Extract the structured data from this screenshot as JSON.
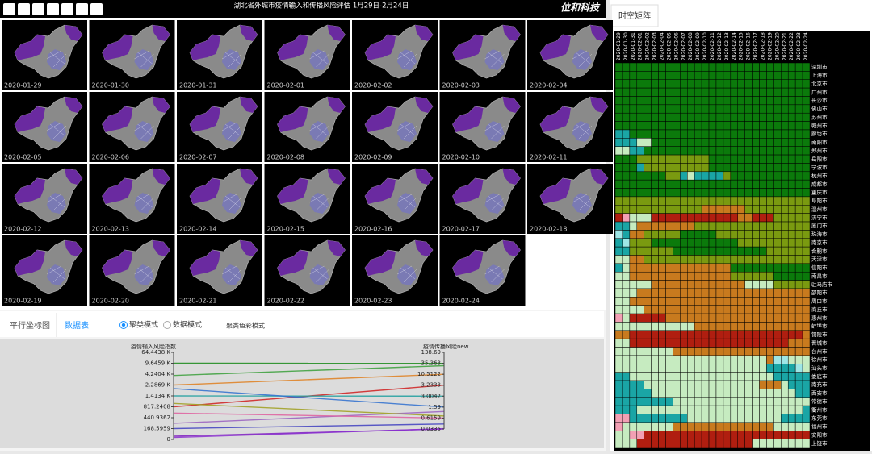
{
  "header": {
    "title": "湖北省外城市疫情输入和传播风险评估 1月29日-2月24日",
    "logo": "位和科技"
  },
  "dates": [
    "2020-01-29",
    "2020-01-30",
    "2020-01-31",
    "2020-02-01",
    "2020-02-02",
    "2020-02-03",
    "2020-02-04",
    "2020-02-05",
    "2020-02-06",
    "2020-02-07",
    "2020-02-08",
    "2020-02-09",
    "2020-02-10",
    "2020-02-11",
    "2020-02-12",
    "2020-02-13",
    "2020-02-14",
    "2020-02-15",
    "2020-02-16",
    "2020-02-17",
    "2020-02-18",
    "2020-02-19",
    "2020-02-20",
    "2020-02-21",
    "2020-02-22",
    "2020-02-23",
    "2020-02-24"
  ],
  "tabs": {
    "items": [
      "平行坐标图",
      "数据表"
    ],
    "radios": [
      "聚类模式",
      "数据模式"
    ],
    "option": "聚类色彩模式"
  },
  "parallel": {
    "left_axis": {
      "title": "疫情输入风险指数",
      "ticks": [
        0,
        168.5959,
        440.9362,
        817.2408,
        {
          "value": 1413.4,
          "label": "1.4134 K"
        },
        {
          "value": 2286.9,
          "label": "2.2869 K"
        },
        {
          "value": 4240.4,
          "label": "4.2404 K"
        },
        {
          "value": 9645.9,
          "label": "9.6459 K"
        },
        {
          "value": 64443.8,
          "label": "64.4438 K"
        }
      ]
    },
    "right_axis": {
      "title": "疫情传播风险new",
      "ticks": [
        0.0335,
        0.6159,
        1.59,
        3.0042,
        3.2333,
        10.5122,
        35.363,
        138.69
      ]
    },
    "lines": [
      {
        "color": "#1a8a1a",
        "values": [
          9645.9,
          35.363
        ]
      },
      {
        "color": "#3aa03a",
        "values": [
          4000,
          30
        ]
      },
      {
        "color": "#e08020",
        "values": [
          2286.9,
          10.5122
        ]
      },
      {
        "color": "#d02020",
        "values": [
          817.2408,
          3.2333
        ]
      },
      {
        "color": "#20a0a0",
        "values": [
          1413.4,
          3.0042
        ]
      },
      {
        "color": "#3070d0",
        "values": [
          2000,
          1.59
        ]
      },
      {
        "color": "#9a60c0",
        "values": [
          300,
          1.2
        ]
      },
      {
        "color": "#a0a020",
        "values": [
          1000,
          0.8
        ]
      },
      {
        "color": "#e060a0",
        "values": [
          600,
          0.6159
        ]
      },
      {
        "color": "#4040c0",
        "values": [
          168.5959,
          0.3
        ]
      },
      {
        "color": "#8020c0",
        "values": [
          50,
          0.0335
        ]
      },
      {
        "color": "#8a30d0",
        "values": [
          30,
          0.05
        ]
      }
    ]
  },
  "matrix": {
    "title": "时空矩阵",
    "palette": [
      "#0b7a0b",
      "#7a9a10",
      "#c87a1e",
      "#b01e10",
      "#c6ebc0",
      "#1aa5a5",
      "#f2a0b4",
      "#9ee6e6"
    ],
    "cities": [
      "深圳市",
      "上海市",
      "北京市",
      "广州市",
      "长沙市",
      "佛山市",
      "苏州市",
      "赣州市",
      "廊坊市",
      "南阳市",
      "郑州市",
      "岳阳市",
      "宁波市",
      "杭州市",
      "成都市",
      "重庆市",
      "阜阳市",
      "温州市",
      "济宁市",
      "厦门市",
      "珠海市",
      "南京市",
      "合肥市",
      "天津市",
      "信阳市",
      "南昌市",
      "驻马店市",
      "邵阳市",
      "周口市",
      "商丘市",
      "惠州市",
      "蚌埠市",
      "铜陵市",
      "晋城市",
      "台州市",
      "徐州市",
      "汕头市",
      "娄底市",
      "南充市",
      "西安市",
      "常德市",
      "衢州市",
      "东莞市",
      "福州市",
      "安阳市",
      "上饶市"
    ],
    "clusters": [
      [
        0,
        0,
        0,
        0,
        0,
        0,
        0,
        0,
        0,
        0,
        0,
        0,
        0,
        0,
        0,
        0,
        0,
        0,
        0,
        0,
        0,
        0,
        0,
        0,
        0,
        0,
        0
      ],
      [
        0,
        0,
        0,
        0,
        0,
        0,
        0,
        0,
        0,
        0,
        0,
        0,
        0,
        0,
        0,
        0,
        0,
        0,
        0,
        0,
        0,
        0,
        0,
        0,
        0,
        0,
        0
      ],
      [
        0,
        0,
        0,
        0,
        0,
        0,
        0,
        0,
        0,
        0,
        0,
        0,
        0,
        0,
        0,
        0,
        0,
        0,
        0,
        0,
        0,
        0,
        0,
        0,
        0,
        0,
        0
      ],
      [
        0,
        0,
        0,
        0,
        0,
        0,
        0,
        0,
        0,
        0,
        0,
        0,
        0,
        0,
        0,
        0,
        0,
        0,
        0,
        0,
        0,
        0,
        0,
        0,
        0,
        0,
        0
      ],
      [
        0,
        0,
        0,
        0,
        0,
        0,
        0,
        0,
        0,
        0,
        0,
        0,
        0,
        0,
        0,
        0,
        0,
        0,
        0,
        0,
        0,
        0,
        0,
        0,
        0,
        0,
        0
      ],
      [
        0,
        0,
        0,
        0,
        0,
        0,
        0,
        0,
        0,
        0,
        0,
        0,
        0,
        0,
        0,
        0,
        0,
        0,
        0,
        0,
        0,
        0,
        0,
        0,
        0,
        0,
        0
      ],
      [
        0,
        0,
        0,
        0,
        0,
        0,
        0,
        0,
        0,
        0,
        0,
        0,
        0,
        0,
        0,
        0,
        0,
        0,
        0,
        0,
        0,
        0,
        0,
        0,
        0,
        0,
        0
      ],
      [
        0,
        0,
        0,
        0,
        0,
        0,
        0,
        0,
        0,
        0,
        0,
        0,
        0,
        0,
        0,
        0,
        0,
        0,
        0,
        0,
        0,
        0,
        0,
        0,
        0,
        0,
        0
      ],
      [
        5,
        5,
        0,
        0,
        0,
        0,
        0,
        0,
        0,
        0,
        0,
        0,
        0,
        0,
        0,
        0,
        0,
        0,
        0,
        0,
        0,
        0,
        0,
        0,
        0,
        0,
        0
      ],
      [
        5,
        5,
        5,
        4,
        4,
        0,
        0,
        0,
        0,
        0,
        0,
        0,
        0,
        0,
        0,
        0,
        0,
        0,
        0,
        0,
        0,
        0,
        0,
        0,
        0,
        0,
        0
      ],
      [
        4,
        4,
        5,
        5,
        0,
        0,
        0,
        0,
        0,
        0,
        0,
        0,
        0,
        0,
        0,
        0,
        0,
        0,
        0,
        0,
        0,
        0,
        0,
        0,
        0,
        0,
        0
      ],
      [
        0,
        0,
        0,
        1,
        1,
        1,
        1,
        1,
        1,
        1,
        1,
        1,
        1,
        0,
        0,
        0,
        0,
        0,
        0,
        0,
        0,
        0,
        0,
        0,
        0,
        0,
        0
      ],
      [
        0,
        0,
        0,
        5,
        1,
        1,
        1,
        1,
        1,
        1,
        1,
        1,
        1,
        0,
        0,
        0,
        0,
        0,
        0,
        0,
        0,
        0,
        0,
        0,
        0,
        0,
        0
      ],
      [
        0,
        0,
        0,
        0,
        0,
        0,
        0,
        1,
        1,
        5,
        4,
        5,
        5,
        5,
        5,
        1,
        0,
        0,
        0,
        0,
        0,
        0,
        0,
        0,
        0,
        0,
        0
      ],
      [
        0,
        0,
        0,
        0,
        0,
        0,
        0,
        0,
        0,
        0,
        0,
        0,
        0,
        0,
        0,
        0,
        0,
        0,
        0,
        0,
        0,
        0,
        0,
        0,
        0,
        0,
        0
      ],
      [
        0,
        0,
        0,
        0,
        0,
        0,
        0,
        0,
        0,
        0,
        0,
        0,
        0,
        0,
        0,
        0,
        0,
        0,
        0,
        0,
        0,
        0,
        0,
        0,
        0,
        0,
        0
      ],
      [
        1,
        1,
        1,
        1,
        1,
        1,
        1,
        1,
        1,
        1,
        1,
        1,
        1,
        1,
        1,
        1,
        1,
        1,
        1,
        1,
        1,
        1,
        1,
        1,
        1,
        1,
        1
      ],
      [
        1,
        1,
        1,
        1,
        1,
        1,
        1,
        1,
        1,
        1,
        1,
        1,
        2,
        2,
        2,
        2,
        2,
        2,
        1,
        1,
        1,
        1,
        1,
        1,
        1,
        1,
        1
      ],
      [
        3,
        6,
        4,
        4,
        4,
        3,
        3,
        3,
        3,
        3,
        3,
        3,
        3,
        3,
        3,
        3,
        3,
        2,
        2,
        3,
        3,
        3,
        1,
        1,
        1,
        1,
        1
      ],
      [
        5,
        5,
        4,
        2,
        2,
        2,
        2,
        2,
        2,
        2,
        2,
        1,
        1,
        1,
        1,
        1,
        1,
        1,
        1,
        1,
        1,
        1,
        1,
        1,
        1,
        1,
        1
      ],
      [
        7,
        5,
        2,
        2,
        1,
        1,
        1,
        1,
        1,
        0,
        0,
        0,
        0,
        0,
        1,
        1,
        1,
        1,
        1,
        1,
        1,
        1,
        1,
        1,
        1,
        1,
        1
      ],
      [
        5,
        7,
        1,
        1,
        1,
        0,
        0,
        0,
        0,
        0,
        0,
        0,
        0,
        0,
        0,
        0,
        0,
        1,
        1,
        1,
        1,
        1,
        1,
        1,
        1,
        1,
        1
      ],
      [
        5,
        5,
        1,
        1,
        1,
        1,
        1,
        1,
        0,
        0,
        0,
        0,
        0,
        0,
        0,
        0,
        0,
        0,
        0,
        0,
        0,
        1,
        1,
        1,
        1,
        1,
        1
      ],
      [
        4,
        4,
        2,
        2,
        1,
        1,
        1,
        1,
        1,
        1,
        1,
        1,
        1,
        1,
        1,
        1,
        1,
        1,
        1,
        1,
        1,
        1,
        1,
        1,
        1,
        1,
        1
      ],
      [
        5,
        4,
        2,
        2,
        2,
        2,
        2,
        2,
        2,
        2,
        2,
        2,
        2,
        2,
        2,
        2,
        0,
        0,
        0,
        0,
        0,
        0,
        0,
        0,
        0,
        0,
        0
      ],
      [
        4,
        4,
        2,
        2,
        2,
        2,
        2,
        2,
        2,
        2,
        2,
        2,
        2,
        2,
        2,
        2,
        1,
        1,
        1,
        1,
        1,
        1,
        0,
        0,
        0,
        0,
        0
      ],
      [
        4,
        4,
        4,
        4,
        4,
        2,
        2,
        2,
        2,
        2,
        2,
        2,
        2,
        2,
        2,
        2,
        2,
        2,
        4,
        4,
        4,
        4,
        1,
        1,
        1,
        1,
        1
      ],
      [
        4,
        4,
        4,
        2,
        2,
        2,
        2,
        2,
        2,
        2,
        2,
        2,
        2,
        2,
        2,
        2,
        2,
        2,
        2,
        2,
        2,
        2,
        2,
        2,
        2,
        2,
        2
      ],
      [
        4,
        4,
        2,
        2,
        2,
        2,
        2,
        2,
        2,
        2,
        2,
        2,
        2,
        2,
        2,
        2,
        2,
        2,
        2,
        2,
        2,
        2,
        2,
        2,
        2,
        2,
        2
      ],
      [
        4,
        4,
        4,
        4,
        2,
        2,
        2,
        2,
        2,
        2,
        2,
        2,
        2,
        2,
        2,
        2,
        2,
        2,
        2,
        2,
        2,
        2,
        2,
        2,
        2,
        2,
        2
      ],
      [
        6,
        4,
        3,
        3,
        3,
        3,
        3,
        2,
        2,
        2,
        2,
        2,
        2,
        2,
        2,
        2,
        2,
        2,
        2,
        2,
        2,
        2,
        2,
        2,
        2,
        2,
        2
      ],
      [
        4,
        4,
        4,
        4,
        4,
        4,
        4,
        4,
        4,
        4,
        4,
        2,
        2,
        2,
        2,
        2,
        2,
        2,
        2,
        2,
        2,
        2,
        2,
        2,
        2,
        2,
        2
      ],
      [
        2,
        2,
        3,
        3,
        3,
        3,
        3,
        3,
        3,
        3,
        3,
        3,
        3,
        3,
        3,
        3,
        3,
        3,
        3,
        3,
        3,
        3,
        3,
        3,
        3,
        3,
        2
      ],
      [
        4,
        4,
        3,
        3,
        3,
        3,
        3,
        3,
        3,
        3,
        3,
        3,
        3,
        3,
        3,
        3,
        3,
        3,
        3,
        3,
        3,
        3,
        3,
        3,
        2,
        2,
        2
      ],
      [
        4,
        4,
        4,
        4,
        4,
        4,
        4,
        4,
        2,
        2,
        2,
        2,
        2,
        2,
        2,
        2,
        2,
        2,
        2,
        2,
        2,
        2,
        2,
        2,
        2,
        2,
        2
      ],
      [
        4,
        4,
        4,
        4,
        4,
        4,
        4,
        4,
        4,
        4,
        4,
        4,
        4,
        4,
        4,
        4,
        4,
        4,
        4,
        4,
        4,
        2,
        7,
        7,
        4,
        4,
        4
      ],
      [
        4,
        4,
        4,
        4,
        4,
        4,
        4,
        4,
        4,
        4,
        4,
        4,
        4,
        4,
        4,
        4,
        4,
        4,
        4,
        4,
        4,
        5,
        5,
        5,
        5,
        7,
        4
      ],
      [
        5,
        5,
        4,
        4,
        4,
        4,
        4,
        4,
        4,
        4,
        4,
        4,
        4,
        4,
        4,
        4,
        4,
        4,
        4,
        4,
        4,
        4,
        5,
        5,
        5,
        5,
        5
      ],
      [
        5,
        5,
        5,
        5,
        4,
        4,
        4,
        4,
        4,
        4,
        4,
        4,
        4,
        4,
        4,
        4,
        4,
        4,
        4,
        4,
        2,
        2,
        2,
        4,
        5,
        5,
        5
      ],
      [
        5,
        5,
        5,
        5,
        5,
        4,
        4,
        4,
        4,
        4,
        4,
        4,
        4,
        4,
        4,
        4,
        4,
        4,
        4,
        4,
        4,
        4,
        4,
        4,
        4,
        5,
        5
      ],
      [
        5,
        5,
        5,
        5,
        5,
        5,
        5,
        5,
        4,
        4,
        4,
        4,
        4,
        4,
        4,
        4,
        4,
        4,
        4,
        4,
        4,
        4,
        4,
        4,
        4,
        4,
        4
      ],
      [
        5,
        5,
        5,
        4,
        4,
        4,
        4,
        4,
        4,
        4,
        4,
        4,
        4,
        4,
        4,
        4,
        4,
        4,
        4,
        4,
        4,
        4,
        4,
        4,
        4,
        4,
        5
      ],
      [
        6,
        6,
        5,
        5,
        5,
        5,
        5,
        5,
        5,
        5,
        4,
        4,
        4,
        4,
        4,
        4,
        4,
        4,
        4,
        4,
        4,
        4,
        4,
        5,
        5,
        5,
        5
      ],
      [
        6,
        4,
        4,
        4,
        4,
        4,
        4,
        4,
        2,
        2,
        2,
        2,
        2,
        2,
        2,
        2,
        2,
        2,
        2,
        2,
        2,
        2,
        4,
        4,
        4,
        4,
        4
      ],
      [
        4,
        4,
        6,
        6,
        3,
        3,
        3,
        3,
        3,
        3,
        3,
        3,
        3,
        3,
        3,
        3,
        3,
        3,
        3,
        3,
        3,
        3,
        3,
        3,
        3,
        3,
        3
      ],
      [
        4,
        4,
        4,
        3,
        3,
        3,
        3,
        3,
        3,
        3,
        3,
        3,
        3,
        3,
        3,
        3,
        3,
        3,
        3,
        4,
        4,
        4,
        4,
        4,
        4,
        4,
        4
      ]
    ]
  }
}
